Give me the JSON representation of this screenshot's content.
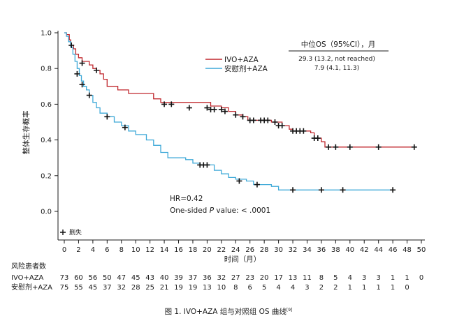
{
  "chart_data": {
    "type": "line",
    "xlabel": "时间（月）",
    "ylabel": "整体生存概率",
    "xlim": [
      0,
      50
    ],
    "ylim": [
      0,
      1.0
    ],
    "x_ticks": [
      "0",
      "2",
      "4",
      "6",
      "8",
      "10",
      "12",
      "14",
      "16",
      "18",
      "20",
      "22",
      "24",
      "26",
      "28",
      "30",
      "32",
      "34",
      "36",
      "38",
      "40",
      "42",
      "44",
      "46",
      "48",
      "50"
    ],
    "y_ticks": [
      "0.0",
      "0.2",
      "0.4",
      "0.6",
      "0.8",
      "1.0"
    ],
    "colors": {
      "ivo": "#c0272d",
      "placebo": "#3fa9d8",
      "censor": "#111111",
      "axis": "#1a1a1a"
    },
    "median_table": {
      "header": "中位OS（95%CI），月",
      "ivo_value": "29.3 (13.2, not reached)",
      "placebo_value": "7.9 (4.1, 11.3)"
    },
    "series": [
      {
        "name": "IVO+AZA",
        "key": "ivo",
        "steps": [
          [
            0,
            1.0
          ],
          [
            0.3,
            0.99
          ],
          [
            0.7,
            0.96
          ],
          [
            0.9,
            0.93
          ],
          [
            1.3,
            0.91
          ],
          [
            1.6,
            0.88
          ],
          [
            2.0,
            0.86
          ],
          [
            2.5,
            0.84
          ],
          [
            3.5,
            0.82
          ],
          [
            4.0,
            0.8
          ],
          [
            4.5,
            0.79
          ],
          [
            5.0,
            0.77
          ],
          [
            5.5,
            0.74
          ],
          [
            6.0,
            0.7
          ],
          [
            7.5,
            0.68
          ],
          [
            9.0,
            0.66
          ],
          [
            12.5,
            0.63
          ],
          [
            13.5,
            0.61
          ],
          [
            20.5,
            0.59
          ],
          [
            22.0,
            0.58
          ],
          [
            23.0,
            0.56
          ],
          [
            24.0,
            0.54
          ],
          [
            25.0,
            0.53
          ],
          [
            25.7,
            0.51
          ],
          [
            29.0,
            0.5
          ],
          [
            30.5,
            0.48
          ],
          [
            31.5,
            0.46
          ],
          [
            32.0,
            0.45
          ],
          [
            34.5,
            0.44
          ],
          [
            35.0,
            0.41
          ],
          [
            36.0,
            0.39
          ],
          [
            36.5,
            0.36
          ],
          [
            49.0,
            0.36
          ]
        ],
        "censored": [
          [
            1.0,
            0.93
          ],
          [
            2.5,
            0.83
          ],
          [
            4.5,
            0.79
          ],
          [
            14.0,
            0.6
          ],
          [
            15.0,
            0.6
          ],
          [
            17.5,
            0.58
          ],
          [
            20.0,
            0.58
          ],
          [
            20.5,
            0.57
          ],
          [
            21.0,
            0.57
          ],
          [
            22.0,
            0.57
          ],
          [
            22.5,
            0.56
          ],
          [
            24.0,
            0.54
          ],
          [
            25.0,
            0.53
          ],
          [
            26.0,
            0.51
          ],
          [
            26.5,
            0.51
          ],
          [
            27.5,
            0.51
          ],
          [
            28.0,
            0.51
          ],
          [
            28.5,
            0.51
          ],
          [
            29.5,
            0.5
          ],
          [
            30.0,
            0.48
          ],
          [
            30.5,
            0.48
          ],
          [
            32.0,
            0.45
          ],
          [
            32.5,
            0.45
          ],
          [
            33.0,
            0.45
          ],
          [
            33.5,
            0.45
          ],
          [
            35.0,
            0.41
          ],
          [
            35.5,
            0.41
          ],
          [
            37.0,
            0.36
          ],
          [
            38.0,
            0.36
          ],
          [
            40.0,
            0.36
          ],
          [
            44.0,
            0.36
          ],
          [
            49.0,
            0.36
          ]
        ]
      },
      {
        "name": "安慰剂+AZA",
        "key": "placebo",
        "steps": [
          [
            0,
            1.0
          ],
          [
            0.3,
            0.98
          ],
          [
            0.6,
            0.95
          ],
          [
            0.9,
            0.92
          ],
          [
            1.2,
            0.88
          ],
          [
            1.5,
            0.84
          ],
          [
            1.8,
            0.8
          ],
          [
            2.1,
            0.76
          ],
          [
            2.4,
            0.73
          ],
          [
            2.7,
            0.7
          ],
          [
            3.1,
            0.68
          ],
          [
            3.5,
            0.65
          ],
          [
            4.0,
            0.61
          ],
          [
            4.5,
            0.58
          ],
          [
            5.0,
            0.55
          ],
          [
            6.0,
            0.53
          ],
          [
            7.0,
            0.5
          ],
          [
            8.0,
            0.48
          ],
          [
            9.0,
            0.45
          ],
          [
            10.0,
            0.43
          ],
          [
            11.5,
            0.4
          ],
          [
            12.5,
            0.37
          ],
          [
            13.5,
            0.33
          ],
          [
            14.5,
            0.3
          ],
          [
            17.0,
            0.29
          ],
          [
            18.0,
            0.27
          ],
          [
            19.0,
            0.26
          ],
          [
            21.0,
            0.23
          ],
          [
            22.0,
            0.21
          ],
          [
            23.0,
            0.19
          ],
          [
            24.0,
            0.18
          ],
          [
            25.5,
            0.17
          ],
          [
            26.5,
            0.15
          ],
          [
            29.0,
            0.14
          ],
          [
            30.0,
            0.12
          ],
          [
            46.0,
            0.12
          ]
        ],
        "censored": [
          [
            1.8,
            0.77
          ],
          [
            2.5,
            0.71
          ],
          [
            3.5,
            0.65
          ],
          [
            6.0,
            0.53
          ],
          [
            8.5,
            0.47
          ],
          [
            19.0,
            0.26
          ],
          [
            19.5,
            0.26
          ],
          [
            20.0,
            0.26
          ],
          [
            24.5,
            0.17
          ],
          [
            27.0,
            0.15
          ],
          [
            32.0,
            0.12
          ],
          [
            36.0,
            0.12
          ],
          [
            39.0,
            0.12
          ],
          [
            46.0,
            0.12
          ]
        ]
      }
    ],
    "legend": {
      "position": "top-right",
      "items": [
        "IVO+AZA",
        "安慰剂+AZA"
      ]
    },
    "annotations": {
      "hr": "HR=0.42",
      "p_prefix": "One-sided ",
      "p_italic": "P",
      "p_suffix": " value: < .0001",
      "censor_legend": "删失"
    },
    "risk_table": {
      "title": "风险患者数",
      "rows": [
        {
          "label": "IVO+AZA",
          "values": [
            "73",
            "60",
            "56",
            "50",
            "47",
            "45",
            "43",
            "40",
            "39",
            "37",
            "36",
            "32",
            "27",
            "23",
            "20",
            "17",
            "13",
            "11",
            "8",
            "5",
            "4",
            "3",
            "3",
            "1",
            "1",
            "0"
          ]
        },
        {
          "label": "安慰剂+AZA",
          "values": [
            "75",
            "55",
            "45",
            "37",
            "32",
            "28",
            "25",
            "21",
            "19",
            "19",
            "13",
            "10",
            "8",
            "6",
            "5",
            "4",
            "4",
            "3",
            "2",
            "2",
            "1",
            "1",
            "1",
            "1",
            "0"
          ]
        }
      ]
    },
    "caption_main": "图 1. IVO+AZA 组与对照组 OS 曲线",
    "caption_ref": "[9]"
  }
}
